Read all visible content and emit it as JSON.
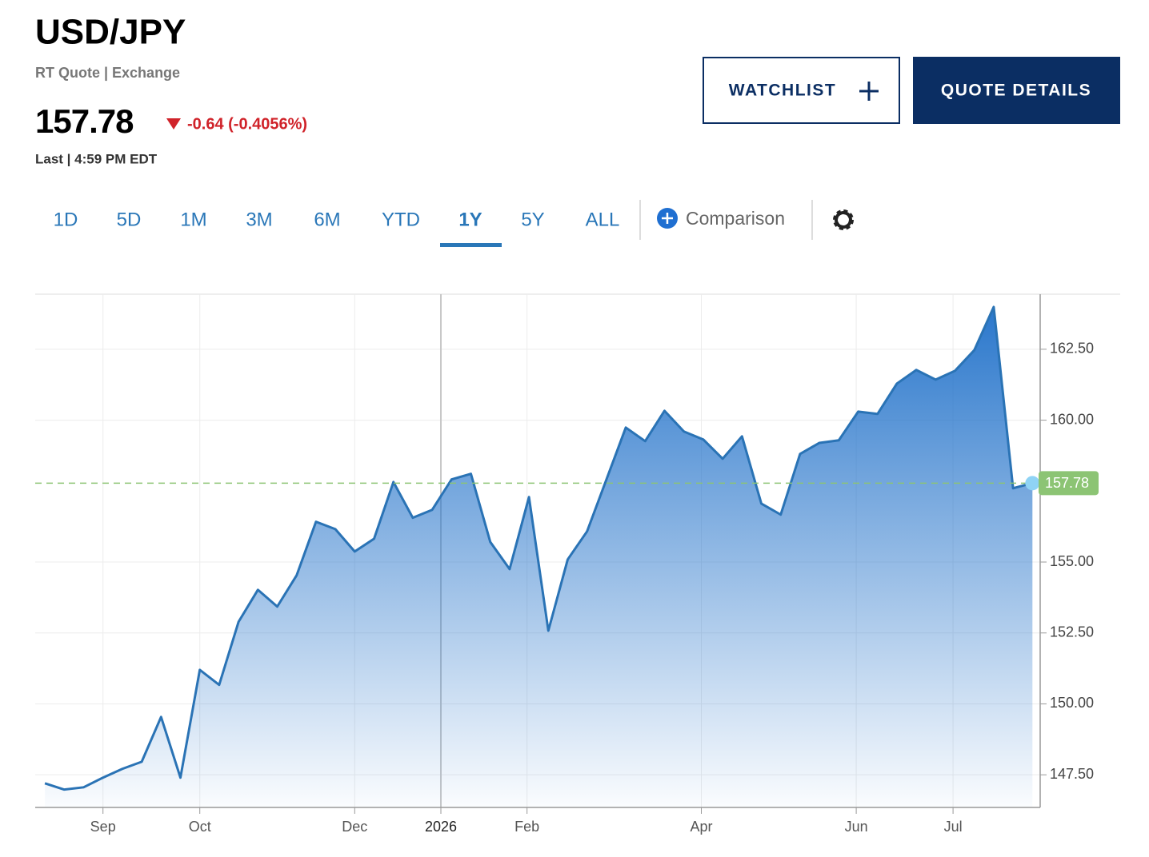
{
  "header": {
    "title": "USD/JPY",
    "subtitle": "RT Quote | Exchange",
    "price": "157.78",
    "change": "-0.64 (-0.4056%)",
    "last": "Last | 4:59 PM EDT"
  },
  "buttons": {
    "watchlist": "WATCHLIST",
    "quote_details": "QUOTE DETAILS"
  },
  "tabs": [
    "1D",
    "5D",
    "1M",
    "3M",
    "6M",
    "YTD",
    "1Y",
    "5Y",
    "ALL"
  ],
  "active_tab": "1Y",
  "comparison": "Comparison",
  "chart_data": {
    "type": "area",
    "color": "#2a73b5",
    "last_color": "#8cc474",
    "categories": [
      null,
      null,
      null,
      null,
      null,
      null,
      null,
      null,
      null,
      null,
      null,
      null,
      null,
      null,
      null,
      null,
      null,
      null,
      null,
      null,
      null,
      null,
      null,
      null,
      null,
      null,
      null,
      null,
      null,
      null,
      null,
      null,
      null,
      null,
      null,
      null,
      null,
      null,
      null,
      null,
      null,
      null,
      null,
      null,
      null,
      null,
      null,
      null,
      null,
      null,
      null,
      null
    ],
    "values": [
      147.2,
      146.98,
      147.06,
      147.4,
      147.71,
      147.96,
      149.54,
      147.4,
      151.2,
      150.67,
      152.89,
      154.02,
      153.43,
      154.53,
      156.42,
      156.16,
      155.37,
      155.82,
      157.82,
      156.56,
      156.84,
      157.91,
      158.11,
      155.71,
      154.75,
      157.29,
      152.58,
      155.09,
      156.08,
      157.91,
      159.74,
      159.26,
      160.33,
      159.6,
      159.32,
      158.64,
      159.43,
      157.06,
      156.67,
      158.81,
      159.2,
      159.29,
      160.3,
      160.22,
      161.29,
      161.77,
      161.43,
      161.74,
      162.47,
      163.99,
      157.6,
      157.78
    ],
    "last_value": 157.78,
    "xlim": [
      -0.5,
      51.4
    ],
    "xticks": [
      {
        "value": 3.0,
        "label": "Sep"
      },
      {
        "value": 8.0,
        "label": "Oct"
      },
      {
        "value": 16.0,
        "label": "Dec"
      },
      {
        "value": 20.45,
        "label": "2026"
      },
      {
        "value": 24.9,
        "label": "Feb"
      },
      {
        "value": 33.9,
        "label": "Apr"
      },
      {
        "value": 41.9,
        "label": "Jun"
      },
      {
        "value": 46.9,
        "label": "Jul"
      }
    ],
    "ylim": [
      146.35,
      164.44
    ],
    "yticks": [
      {
        "value": 147.5,
        "label": "147.50"
      },
      {
        "value": 150,
        "label": "150.00"
      },
      {
        "value": 152.5,
        "label": "152.50"
      },
      {
        "value": 155,
        "label": "155.00"
      },
      {
        "value": 160,
        "label": "160.00"
      },
      {
        "value": 162.5,
        "label": "162.50"
      }
    ],
    "grid": true
  }
}
